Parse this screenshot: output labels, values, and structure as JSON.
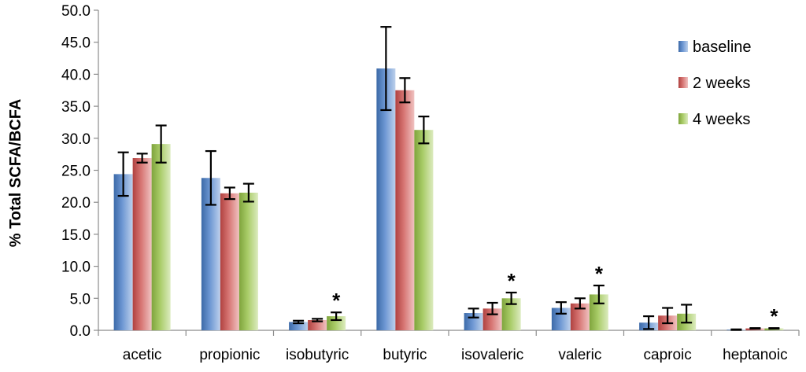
{
  "chart_data": {
    "type": "bar",
    "ylabel": "% Total  SCFA/BCFA",
    "xlabel": "",
    "ylim": [
      0,
      50
    ],
    "y_ticks": [
      "0.0",
      "5.0",
      "10.0",
      "15.0",
      "20.0",
      "25.0",
      "30.0",
      "35.0",
      "40.0",
      "45.0",
      "50.0"
    ],
    "categories": [
      "acetic",
      "propionic",
      "isobutyric",
      "butyric",
      "isovaleric",
      "valeric",
      "caproic",
      "heptanoic"
    ],
    "series": [
      {
        "name": "baseline",
        "color": "#4f81bd",
        "values": [
          24.4,
          23.8,
          1.3,
          40.9,
          2.7,
          3.5,
          1.2,
          0.1
        ],
        "errors": [
          3.4,
          4.2,
          0.2,
          6.5,
          0.7,
          0.9,
          1.0,
          0.05
        ]
      },
      {
        "name": "2 weeks",
        "color": "#c0504d",
        "values": [
          26.9,
          21.4,
          1.6,
          37.5,
          3.4,
          4.2,
          2.3,
          0.3
        ],
        "errors": [
          0.7,
          0.9,
          0.2,
          1.9,
          0.9,
          0.8,
          1.2,
          0.05
        ]
      },
      {
        "name": "4 weeks",
        "color": "#9bbb59",
        "values": [
          29.1,
          21.5,
          2.2,
          31.3,
          5.0,
          5.6,
          2.6,
          0.3
        ],
        "errors": [
          2.9,
          1.4,
          0.6,
          2.1,
          0.9,
          1.4,
          1.4,
          0.05
        ]
      }
    ],
    "significance_marker": "*",
    "significance_categories": [
      "isobutyric",
      "isovaleric",
      "valeric",
      "heptanoic"
    ],
    "grid": false,
    "legend_position": "top-right"
  }
}
